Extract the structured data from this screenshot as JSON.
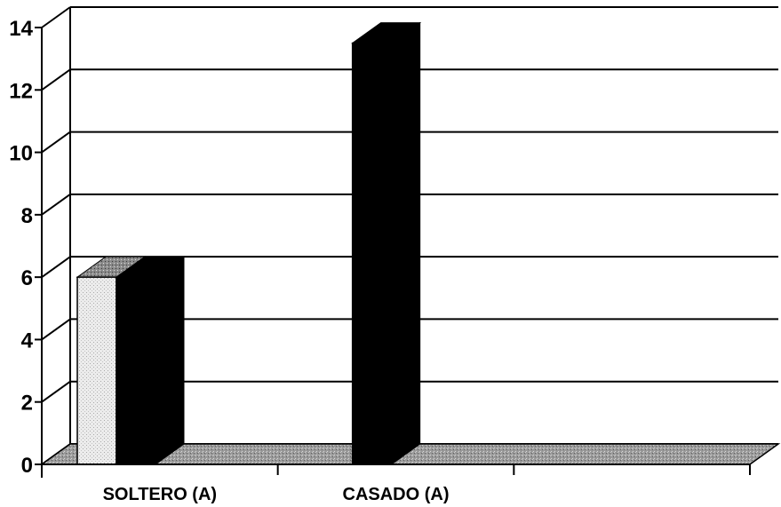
{
  "chart_data": {
    "type": "bar",
    "style": "3d-column",
    "categories": [
      "SOLTERO (A)",
      "CASADO (A)"
    ],
    "series": [
      {
        "values": [
          6,
          0
        ],
        "color": "#e6e6e6"
      },
      {
        "values": [
          6,
          13.5
        ],
        "color": "#000000"
      }
    ],
    "ylim": [
      0,
      14
    ],
    "yticks": [
      "0",
      "2",
      "4",
      "6",
      "8",
      "10",
      "12",
      "14"
    ],
    "grid": true,
    "legend": "none",
    "colors": {
      "gridlines": "#000000",
      "floor": "#8c8c8c",
      "background": "#ffffff"
    }
  }
}
